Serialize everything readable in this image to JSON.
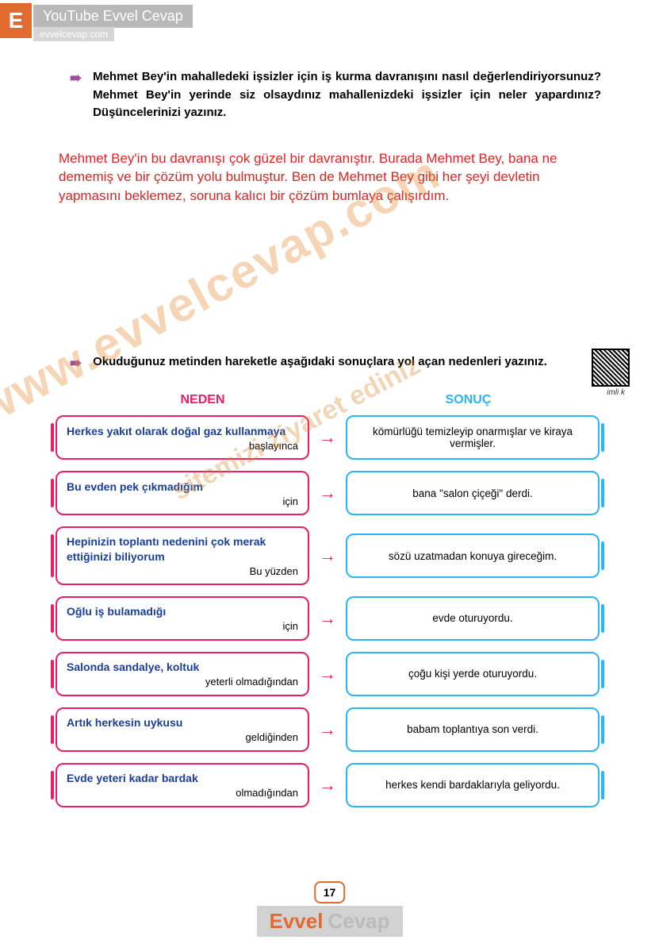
{
  "header": {
    "logo_letter": "E",
    "youtube_label": "YouTube Evvel Cevap",
    "site_url": "evvelcevap.com"
  },
  "question1": {
    "bullet": "➠",
    "text": "Mehmet Bey'in mahalledeki işsizler için iş kurma davranışını nasıl değerlendiriyorsunuz? Mehmet Bey'in yerinde siz olsaydınız mahallenizdeki işsizler için neler yapardınız? Düşüncelerinizi yazınız."
  },
  "answer1": {
    "text": "Mehmet Bey'in bu davranışı çok güzel bir davranıştır. Burada Mehmet Bey, bana ne dememiş ve bir çözüm yolu bulmuştur. Ben de Mehmet Bey gibi her şeyi devletin yapmasını beklemez, soruna kalıcı bir çözüm bumlaya çalışırdım."
  },
  "question2": {
    "bullet": "➠",
    "text": "Okuduğunuz metinden hareketle aşağıdaki sonuçlara yol açan nedenleri yazınız.",
    "qr_caption": "imli\nk"
  },
  "table": {
    "header_neden": "NEDEN",
    "header_sonuc": "SONUÇ",
    "rows": [
      {
        "neden_main": "Herkes yakıt olarak doğal gaz kullanmaya",
        "neden_suffix": "başlayınca",
        "sonuc": "kömürlüğü temizleyip onarmışlar ve kiraya vermişler."
      },
      {
        "neden_main": "Bu evden pek çıkmadığım",
        "neden_suffix": "için",
        "sonuc": "bana \"salon çiçeği\" derdi."
      },
      {
        "neden_main": "Hepinizin toplantı nedenini çok merak ettiğinizi biliyorum",
        "neden_suffix": "Bu yüzden",
        "sonuc": "sözü uzatmadan konuya gireceğim."
      },
      {
        "neden_main": "Oğlu iş bulamadığı",
        "neden_suffix": "için",
        "sonuc": "evde oturuyordu."
      },
      {
        "neden_main": "Salonda sandalye, koltuk",
        "neden_suffix": "yeterli olmadığından",
        "sonuc": "çoğu kişi yerde oturuyordu."
      },
      {
        "neden_main": "Artık herkesin uykusu",
        "neden_suffix": "geldiğinden",
        "sonuc": "babam toplantıya son verdi."
      },
      {
        "neden_main": "Evde yeteri kadar bardak",
        "neden_suffix": "olmadığından",
        "sonuc": "herkes kendi bardaklarıyla geliyordu."
      }
    ]
  },
  "watermark": {
    "main": "www.evvelcevap.com",
    "sub": "sitemizi ziyaret ediniz"
  },
  "page_number": "17",
  "footer": {
    "evvel": "Evvel",
    "cevap": "Cevap"
  },
  "colors": {
    "orange": "#e16a30",
    "pink": "#e91e63",
    "blue": "#29b6f6",
    "navy": "#1a3e9b",
    "red": "#e22222",
    "purple": "#9b4e9b"
  }
}
